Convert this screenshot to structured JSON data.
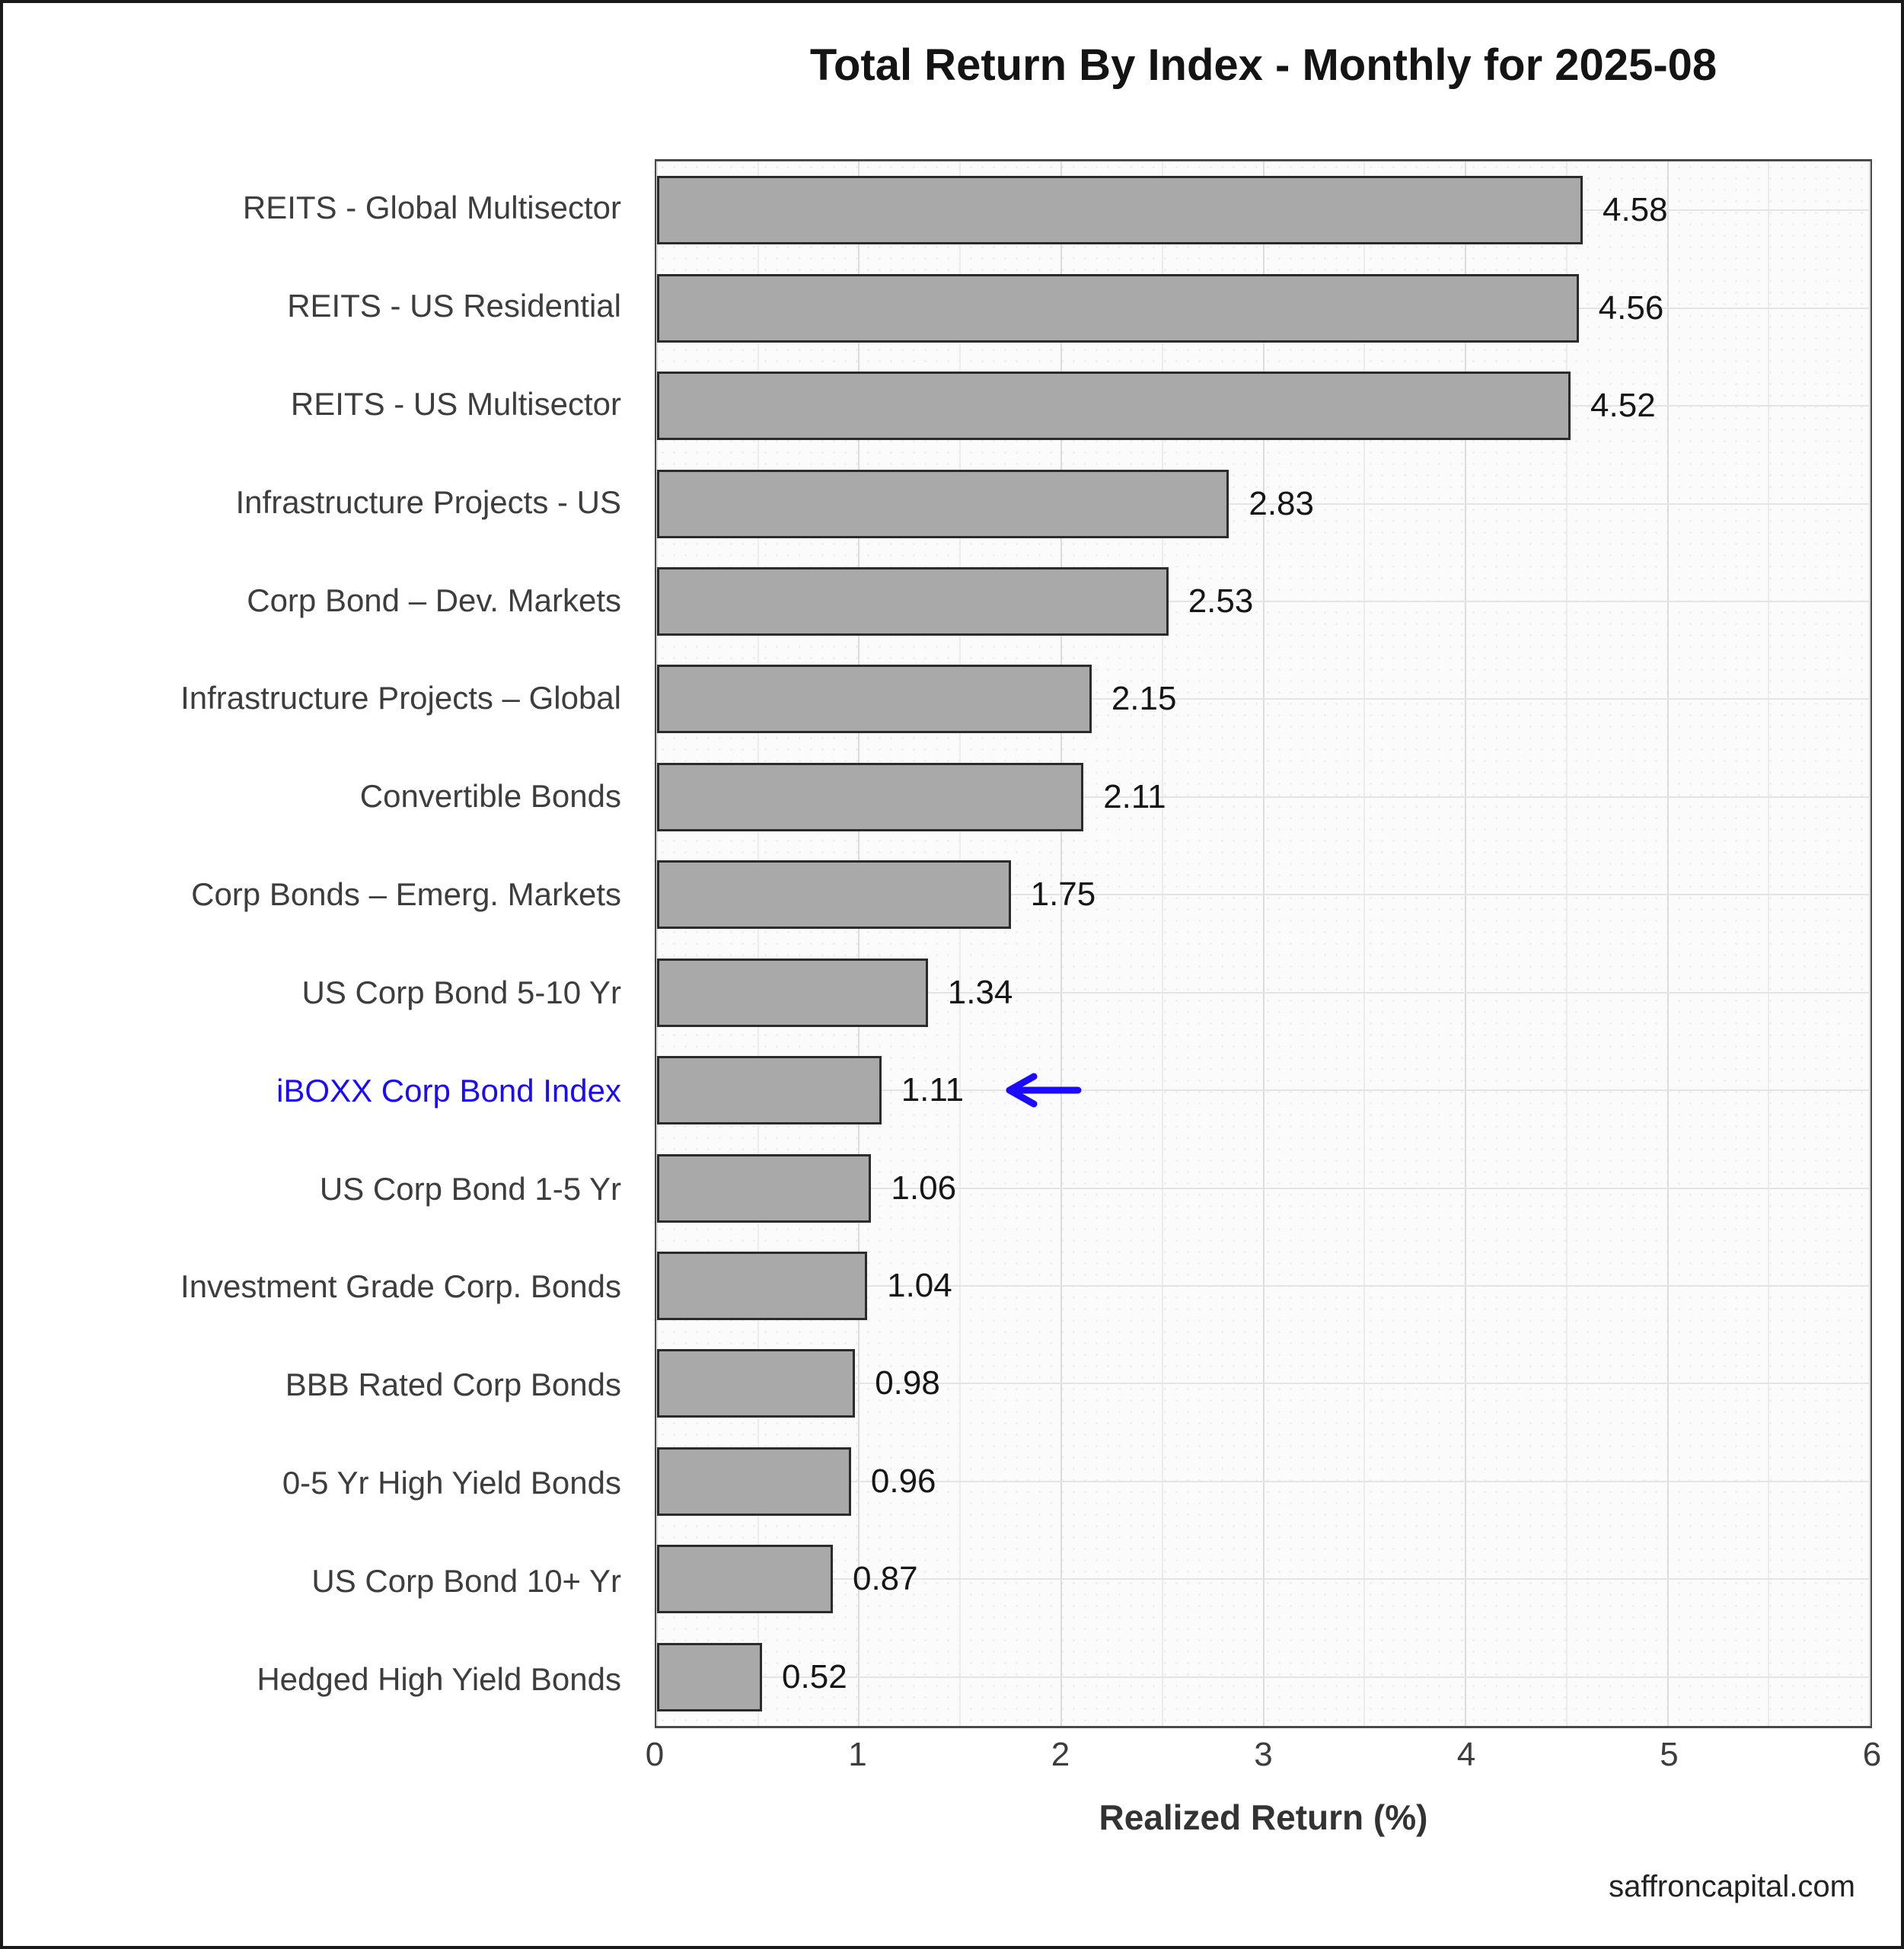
{
  "page": {
    "watermark": "saffroncapital.com"
  },
  "chart_data": {
    "type": "bar",
    "orientation": "horizontal",
    "title": "Total Return By Index - Monthly for 2025-08",
    "xlabel": "Realized Return (%)",
    "ylabel": "",
    "xlim": [
      0,
      6
    ],
    "x_ticks": [
      0,
      1,
      2,
      3,
      4,
      5,
      6
    ],
    "minor_tick_step": 0.5,
    "grid": true,
    "legend": "none",
    "categories": [
      "REITS - Global Multisector",
      "REITS - US Residential",
      "REITS - US Multisector",
      "Infrastructure Projects - US",
      "Corp Bond – Dev. Markets",
      "Infrastructure Projects – Global",
      "Convertible Bonds",
      "Corp Bonds – Emerg. Markets",
      "US Corp Bond 5-10 Yr",
      "iBOXX Corp Bond Index",
      "US Corp Bond 1-5 Yr",
      "Investment Grade Corp. Bonds",
      "BBB Rated Corp Bonds",
      "0-5 Yr High Yield Bonds",
      "US Corp Bond 10+ Yr",
      "Hedged High Yield Bonds"
    ],
    "values": [
      4.58,
      4.56,
      4.52,
      2.83,
      2.53,
      2.15,
      2.11,
      1.75,
      1.34,
      1.11,
      1.06,
      1.04,
      0.98,
      0.96,
      0.87,
      0.52
    ],
    "highlight": {
      "category": "iBOXX Corp Bond Index",
      "index": 9,
      "value": 1.11,
      "marker": "left-arrow",
      "color": "#1a0bff"
    },
    "colors": {
      "bar_fill": "#a9a9a9",
      "bar_edge": "#2b2b2b",
      "accent_blue": "#1a0bff"
    }
  }
}
